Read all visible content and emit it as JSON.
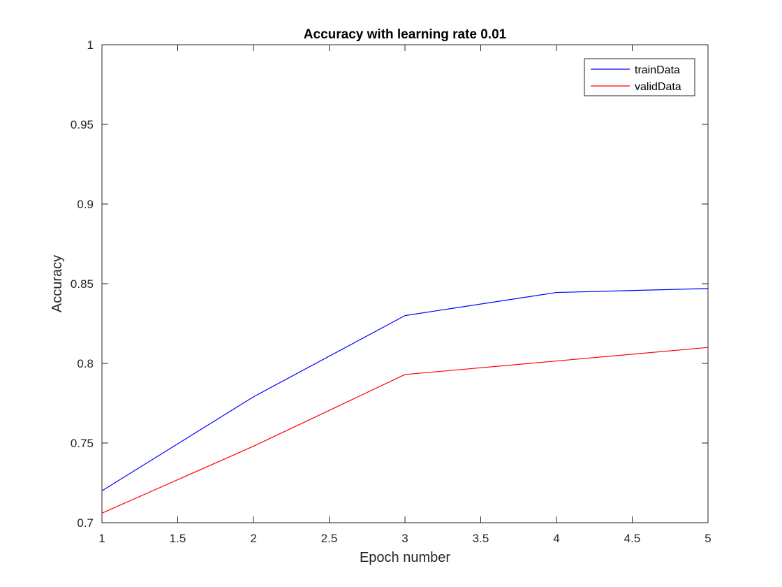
{
  "chart_data": {
    "type": "line",
    "title": "Accuracy with learning rate 0.01",
    "xlabel": "Epoch number",
    "ylabel": "Accuracy",
    "x": [
      1,
      2,
      3,
      4,
      5
    ],
    "xlim": [
      1,
      5
    ],
    "ylim": [
      0.7,
      1
    ],
    "xticks": [
      1,
      1.5,
      2,
      2.5,
      3,
      3.5,
      4,
      4.5,
      5
    ],
    "xtick_labels": [
      "1",
      "1.5",
      "2",
      "2.5",
      "3",
      "3.5",
      "4",
      "4.5",
      "5"
    ],
    "yticks": [
      0.7,
      0.75,
      0.8,
      0.85,
      0.9,
      0.95,
      1
    ],
    "ytick_labels": [
      "0.7",
      "0.75",
      "0.8",
      "0.85",
      "0.9",
      "0.95",
      "1"
    ],
    "grid": false,
    "legend_position": "top-right",
    "series": [
      {
        "name": "trainData",
        "color": "#0000ff",
        "values": [
          0.72,
          0.779,
          0.83,
          0.8445,
          0.847
        ]
      },
      {
        "name": "validData",
        "color": "#ff0000",
        "values": [
          0.706,
          0.748,
          0.793,
          0.8015,
          0.81
        ]
      }
    ]
  }
}
